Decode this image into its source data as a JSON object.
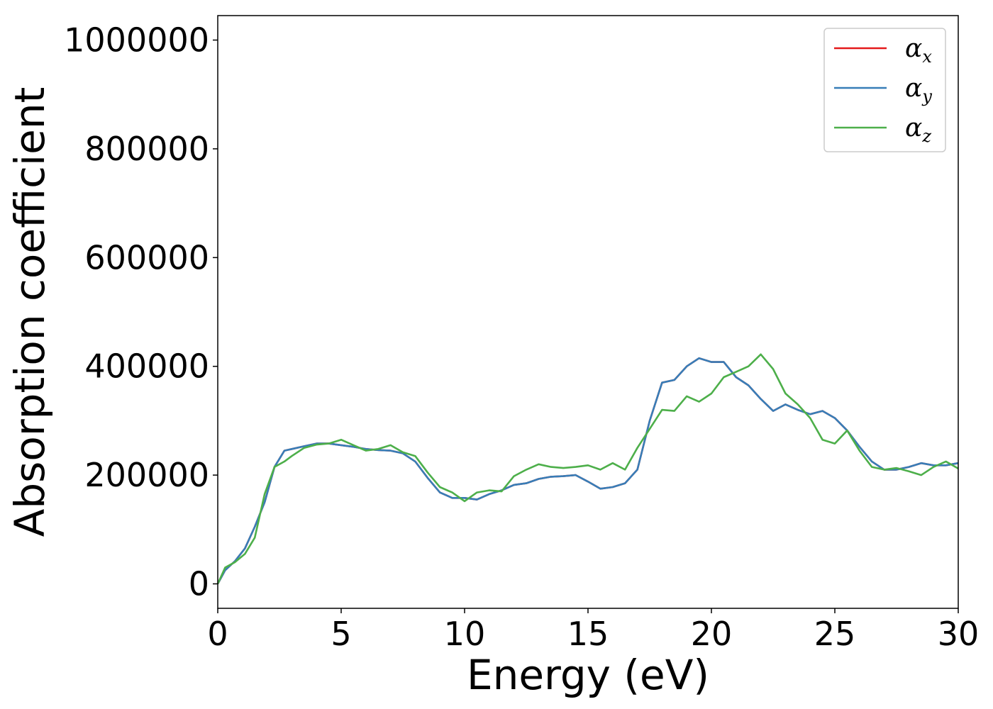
{
  "chart_data": {
    "type": "line",
    "xlabel": "Energy (eV)",
    "ylabel": "Absorption coefficient",
    "xlim": [
      0,
      30
    ],
    "ylim": [
      -45000,
      1045000
    ],
    "xticks": [
      0,
      5,
      10,
      15,
      20,
      25,
      30
    ],
    "yticks": [
      0,
      200000,
      400000,
      600000,
      800000,
      1000000
    ],
    "xtick_labels": [
      "0",
      "5",
      "10",
      "15",
      "20",
      "25",
      "30"
    ],
    "ytick_labels": [
      "0",
      "200000",
      "400000",
      "600000",
      "800000",
      "1000000"
    ],
    "grid": false,
    "legend_position": "top-right",
    "series": [
      {
        "name": "α",
        "subscript": "x",
        "color": "#e41a1c",
        "x": [
          0,
          0.3,
          0.7,
          1.1,
          1.5,
          1.9,
          2.3,
          2.7,
          3.0,
          3.5,
          4.0,
          4.5,
          5.0,
          5.5,
          6.0,
          6.5,
          7.0,
          7.5,
          8.0,
          8.5,
          9.0,
          9.5,
          10.0,
          10.5,
          11.0,
          11.5,
          12.0,
          12.5,
          13.0,
          13.5,
          14.0,
          14.5,
          15.0,
          15.5,
          16.0,
          16.5,
          17.0,
          17.5,
          18.0,
          18.5,
          19.0,
          19.5,
          20.0,
          20.5,
          21.0,
          21.5,
          22.0,
          22.5,
          23.0,
          23.5,
          24.0,
          24.5,
          25.0,
          25.5,
          26.0,
          26.5,
          27.0,
          27.5,
          28.0,
          28.5,
          29.0,
          29.5,
          30.0
        ],
        "y": [
          0,
          25000,
          42000,
          65000,
          105000,
          150000,
          215000,
          245000,
          248000,
          253000,
          258000,
          258000,
          255000,
          252000,
          248000,
          246000,
          245000,
          240000,
          225000,
          195000,
          168000,
          158000,
          158000,
          155000,
          165000,
          172000,
          182000,
          185000,
          193000,
          197000,
          198000,
          200000,
          188000,
          175000,
          178000,
          185000,
          210000,
          300000,
          370000,
          375000,
          400000,
          415000,
          408000,
          408000,
          380000,
          365000,
          340000,
          318000,
          330000,
          320000,
          312000,
          318000,
          305000,
          282000,
          252000,
          225000,
          210000,
          210000,
          215000,
          222000,
          218000,
          218000,
          222000
        ]
      },
      {
        "name": "α",
        "subscript": "y",
        "color": "#377eb8",
        "x": [
          0,
          0.3,
          0.7,
          1.1,
          1.5,
          1.9,
          2.3,
          2.7,
          3.0,
          3.5,
          4.0,
          4.5,
          5.0,
          5.5,
          6.0,
          6.5,
          7.0,
          7.5,
          8.0,
          8.5,
          9.0,
          9.5,
          10.0,
          10.5,
          11.0,
          11.5,
          12.0,
          12.5,
          13.0,
          13.5,
          14.0,
          14.5,
          15.0,
          15.5,
          16.0,
          16.5,
          17.0,
          17.5,
          18.0,
          18.5,
          19.0,
          19.5,
          20.0,
          20.5,
          21.0,
          21.5,
          22.0,
          22.5,
          23.0,
          23.5,
          24.0,
          24.5,
          25.0,
          25.5,
          26.0,
          26.5,
          27.0,
          27.5,
          28.0,
          28.5,
          29.0,
          29.5,
          30.0
        ],
        "y": [
          0,
          25000,
          42000,
          65000,
          105000,
          150000,
          215000,
          245000,
          248000,
          253000,
          258000,
          258000,
          255000,
          252000,
          248000,
          246000,
          245000,
          240000,
          225000,
          195000,
          168000,
          158000,
          158000,
          155000,
          165000,
          172000,
          182000,
          185000,
          193000,
          197000,
          198000,
          200000,
          188000,
          175000,
          178000,
          185000,
          210000,
          300000,
          370000,
          375000,
          400000,
          415000,
          408000,
          408000,
          380000,
          365000,
          340000,
          318000,
          330000,
          320000,
          312000,
          318000,
          305000,
          282000,
          252000,
          225000,
          210000,
          210000,
          215000,
          222000,
          218000,
          218000,
          222000
        ]
      },
      {
        "name": "α",
        "subscript": "z",
        "color": "#4daf4a",
        "x": [
          0,
          0.3,
          0.7,
          1.1,
          1.5,
          1.9,
          2.3,
          2.7,
          3.0,
          3.5,
          4.0,
          4.5,
          5.0,
          5.5,
          6.0,
          6.5,
          7.0,
          7.5,
          8.0,
          8.5,
          9.0,
          9.5,
          10.0,
          10.5,
          11.0,
          11.5,
          12.0,
          12.5,
          13.0,
          13.5,
          14.0,
          14.5,
          15.0,
          15.5,
          16.0,
          16.5,
          17.0,
          17.5,
          18.0,
          18.5,
          19.0,
          19.5,
          20.0,
          20.5,
          21.0,
          21.5,
          22.0,
          22.5,
          23.0,
          23.5,
          24.0,
          24.5,
          25.0,
          25.5,
          26.0,
          26.5,
          27.0,
          27.5,
          28.0,
          28.5,
          29.0,
          29.5,
          30.0
        ],
        "y": [
          0,
          30000,
          40000,
          55000,
          85000,
          165000,
          215000,
          225000,
          235000,
          250000,
          256000,
          258000,
          265000,
          255000,
          245000,
          248000,
          255000,
          242000,
          235000,
          205000,
          178000,
          168000,
          152000,
          168000,
          172000,
          170000,
          198000,
          210000,
          220000,
          215000,
          213000,
          215000,
          218000,
          210000,
          222000,
          210000,
          250000,
          285000,
          320000,
          318000,
          345000,
          335000,
          350000,
          380000,
          390000,
          400000,
          422000,
          395000,
          350000,
          330000,
          305000,
          265000,
          258000,
          282000,
          245000,
          215000,
          210000,
          213000,
          207000,
          200000,
          215000,
          225000,
          212000
        ]
      }
    ]
  }
}
